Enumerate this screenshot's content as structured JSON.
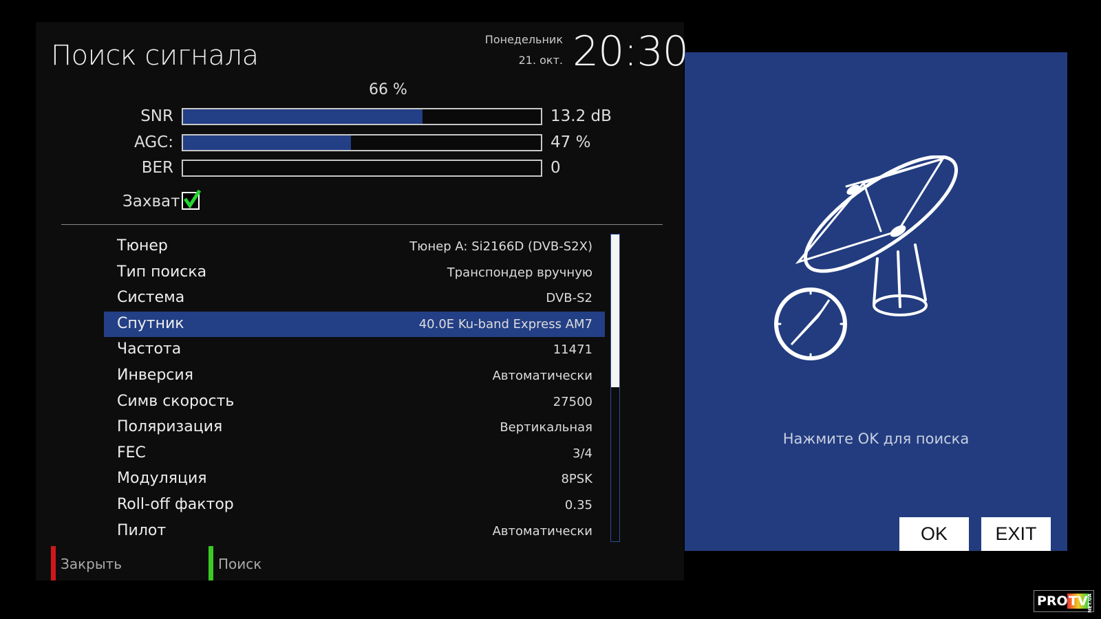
{
  "header": {
    "title": "Поиск сигнала",
    "day": "Понедельник",
    "date": "21. окт.",
    "time": "20:30"
  },
  "signal": {
    "quality": "66 %",
    "bars": [
      {
        "label": "SNR",
        "value": "13.2 dB",
        "fill_percent": 67
      },
      {
        "label": "AGC:",
        "value": "47 %",
        "fill_percent": 47
      },
      {
        "label": "BER",
        "value": "0",
        "fill_percent": 0
      }
    ],
    "lock_label": "Захват",
    "lock_checked": true
  },
  "settings": [
    {
      "label": "Тюнер",
      "value": "Тюнер A: Si2166D (DVB-S2X)"
    },
    {
      "label": "Тип поиска",
      "value": "Транспондер вручную"
    },
    {
      "label": "Система",
      "value": "DVB-S2"
    },
    {
      "label": "Спутник",
      "value": "40.0E Ku-band Express AM7",
      "selected": true
    },
    {
      "label": "Частота",
      "value": "11471"
    },
    {
      "label": "Инверсия",
      "value": "Автоматически"
    },
    {
      "label": "Симв скорость",
      "value": "27500"
    },
    {
      "label": "Поляризация",
      "value": "Вертикальная"
    },
    {
      "label": "FEC",
      "value": "3/4"
    },
    {
      "label": "Модуляция",
      "value": "8PSK"
    },
    {
      "label": "Roll-off фактор",
      "value": "0.35"
    },
    {
      "label": "Пилот",
      "value": "Автоматически"
    }
  ],
  "footer": {
    "red_label": "Закрыть",
    "green_label": "Поиск"
  },
  "dialog": {
    "hint": "Нажмите OK для поиска",
    "ok_label": "OK",
    "exit_label": "EXIT",
    "icon": "satellite-dish-compass-icon"
  },
  "watermark": {
    "text": "PRO TV NET.UA"
  },
  "colors": {
    "accent": "#233f85",
    "dialog_bg": "#223c7f",
    "red": "#d0181b",
    "green": "#3bc924"
  }
}
